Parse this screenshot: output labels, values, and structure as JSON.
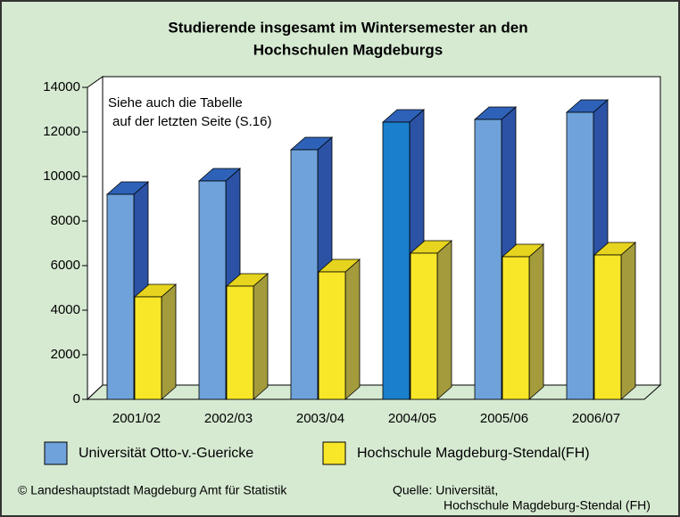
{
  "chart_data": {
    "type": "bar3d",
    "title": [
      "Studierende insgesamt im Wintersemester an den",
      "Hochschulen Magdeburgs"
    ],
    "annotation": [
      "Siehe auch die Tabelle",
      "auf der letzten Seite (S.16)"
    ],
    "categories": [
      "2001/02",
      "2002/03",
      "2003/04",
      "2004/05",
      "2005/06",
      "2006/07"
    ],
    "series": [
      {
        "name": "Universität Otto-v.-Guericke",
        "color": "#6fa2da",
        "side_color": "#2b52a5",
        "top_color": "#2e62b8",
        "point_colors": [
          "#6fa2da",
          "#6fa2da",
          "#6fa2da",
          "#1a7fcc",
          "#6fa2da",
          "#6fa2da"
        ],
        "values": [
          9200,
          9800,
          11200,
          12440,
          12560,
          12880
        ]
      },
      {
        "name": "Hochschule Magdeburg-Stendal(FH)",
        "color": "#f8e629",
        "side_color": "#a39b3c",
        "top_color": "#e6d41e",
        "values": [
          4600,
          5080,
          5720,
          6560,
          6400,
          6480
        ]
      }
    ],
    "ylim": [
      0,
      14000
    ],
    "yticks": [
      0,
      2000,
      4000,
      6000,
      8000,
      10000,
      12000,
      14000
    ],
    "footer": {
      "left": "© Landeshauptstadt Magdeburg  Amt für Statistik",
      "source": [
        "Quelle:  Universität,",
        "Hochschule Magdeburg-Stendal (FH)"
      ]
    }
  }
}
